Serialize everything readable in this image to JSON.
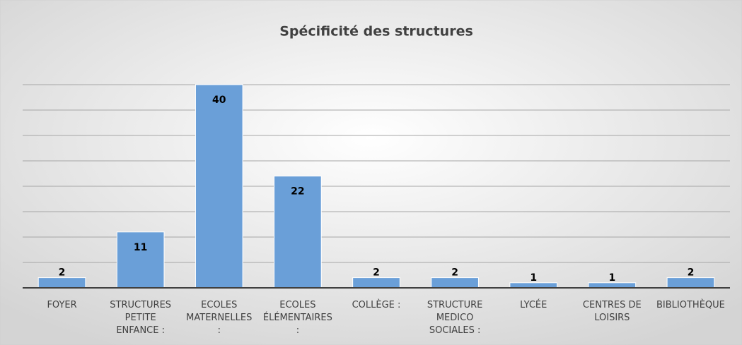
{
  "chart_data": {
    "type": "bar",
    "title": "Spécificité des structures",
    "categories": [
      "FOYER",
      "STRUCTURES PETITE ENFANCE :",
      "ECOLES MATERNELLES :",
      "ECOLES ÉLÉMENTAIRES :",
      "COLLÈGE :",
      "STRUCTURE MEDICO SOCIALES :",
      "LYCÉE",
      "CENTRES DE LOISIRS",
      "BIBLIOTHÈQUE"
    ],
    "values": [
      2,
      11,
      40,
      22,
      2,
      2,
      1,
      1,
      2
    ],
    "color": "#6a9fd8",
    "ylim": [
      0,
      40
    ],
    "yticks": [
      0,
      5,
      10,
      15,
      20,
      25,
      30,
      35,
      40
    ],
    "grid": true
  }
}
